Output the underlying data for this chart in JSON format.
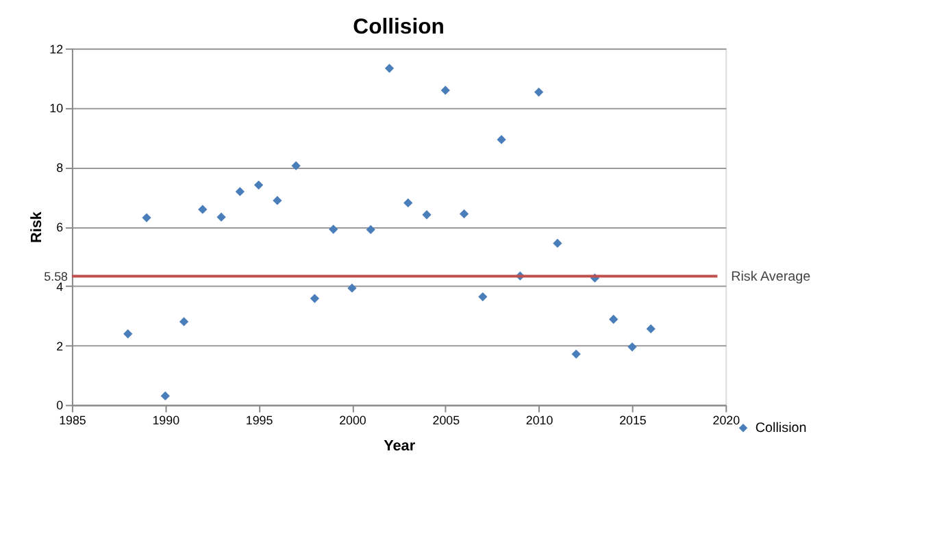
{
  "chart_data": {
    "type": "scatter",
    "title": "Collision",
    "xlabel": "Year",
    "ylabel": "Risk",
    "x": [
      1988,
      1989,
      1990,
      1991,
      1992,
      1993,
      1994,
      1995,
      1996,
      1997,
      1998,
      1999,
      2000,
      2001,
      2002,
      2003,
      2004,
      2005,
      2006,
      2007,
      2008,
      2009,
      2010,
      2011,
      2012,
      2013,
      2014,
      2015,
      2016
    ],
    "series": [
      {
        "name": "Collision",
        "color": "#4a7ebb",
        "values": [
          2.39,
          6.3,
          0.3,
          2.8,
          6.58,
          6.32,
          7.18,
          7.4,
          6.88,
          8.05,
          3.58,
          5.91,
          3.93,
          5.9,
          11.33,
          6.8,
          6.4,
          10.59,
          6.43,
          3.64,
          8.93,
          4.34,
          10.53,
          5.44,
          1.71,
          4.27,
          2.88,
          1.95,
          2.56
        ]
      }
    ],
    "xlim": [
      1985,
      2020
    ],
    "xticks": [
      1985,
      1990,
      1995,
      2000,
      2005,
      2010,
      2015,
      2020
    ],
    "ylim": [
      0,
      12
    ],
    "yticks": [
      0,
      2,
      4,
      6,
      8,
      10,
      12
    ],
    "annotations": [
      "5.58"
    ],
    "ref_lines": [
      {
        "axis": "y",
        "value": 4.33,
        "label": "Risk Average",
        "color": "#c0504d"
      }
    ],
    "grid": "y",
    "legend": "bottom right",
    "marker": "diamond"
  }
}
